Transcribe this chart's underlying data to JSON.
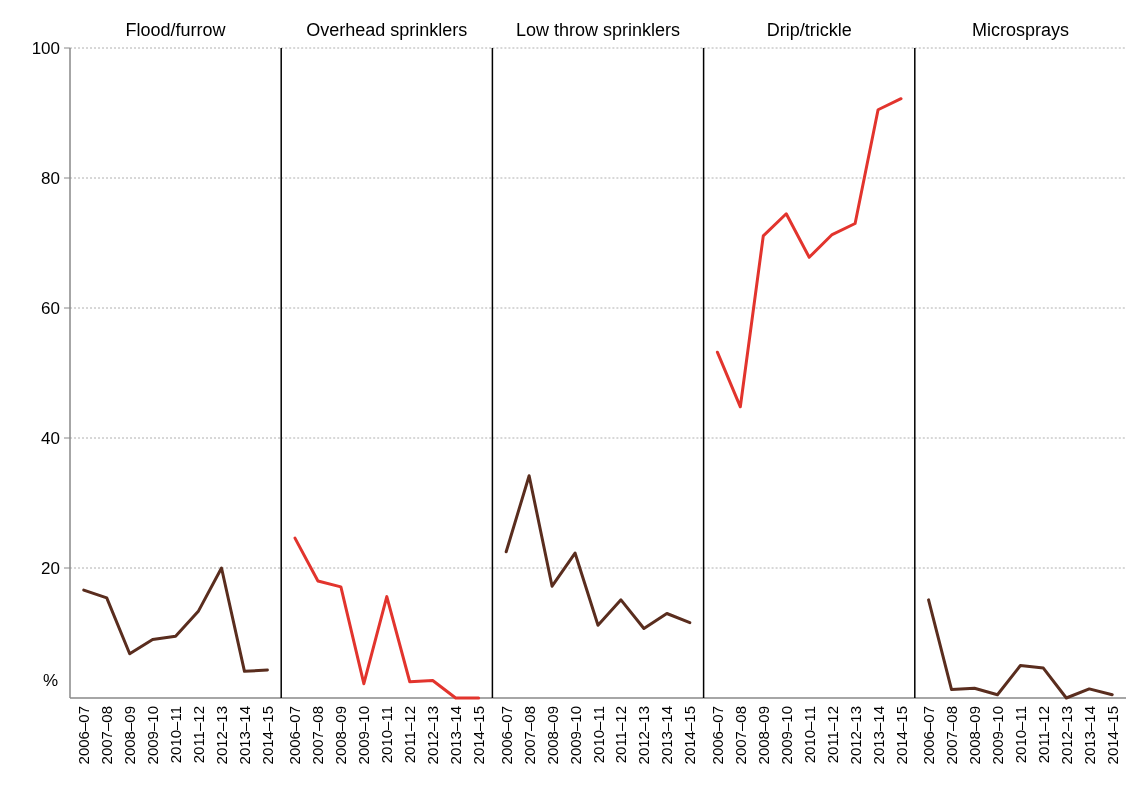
{
  "chart_data": [
    {
      "type": "line",
      "title": "Flood/furrow",
      "ylabel": "%",
      "categories": [
        "2006–07",
        "2007–08",
        "2008–09",
        "2009–10",
        "2010–11",
        "2011–12",
        "2012–13",
        "2013–14",
        "2014–15"
      ],
      "ylim": [
        0,
        100
      ],
      "yticks": [
        20,
        40,
        60,
        80,
        100
      ],
      "grid": "y",
      "series": [
        {
          "color": "#5a2d1e",
          "values": [
            16.6,
            15.4,
            6.8,
            9.0,
            9.5,
            13.4,
            20.0,
            4.1,
            4.3
          ]
        }
      ]
    },
    {
      "type": "line",
      "title": "Overhead sprinklers",
      "categories": [
        "2006–07",
        "2007–08",
        "2008–09",
        "2009–10",
        "2010–11",
        "2011–12",
        "2012–13",
        "2013–14",
        "2014–15"
      ],
      "ylim": [
        0,
        100
      ],
      "yticks": [
        20,
        40,
        60,
        80,
        100
      ],
      "grid": "y",
      "tick_labels": "x",
      "series": [
        {
          "color": "#e2342d",
          "values": [
            24.6,
            18.0,
            17.1,
            2.2,
            15.6,
            2.5,
            2.7,
            0,
            0
          ]
        }
      ]
    },
    {
      "type": "line",
      "title": "Low throw sprinklers",
      "categories": [
        "2006–07",
        "2007–08",
        "2008–09",
        "2009–10",
        "2010–11",
        "2011–12",
        "2012–13",
        "2013–14",
        "2014–15"
      ],
      "ylim": [
        0,
        100
      ],
      "yticks": [
        20,
        40,
        60,
        80,
        100
      ],
      "grid": "y",
      "tick_labels": "x",
      "series": [
        {
          "color": "#5a2d1e",
          "values": [
            22.5,
            34.2,
            17.2,
            22.3,
            11.2,
            15.1,
            10.7,
            13.0,
            11.6
          ]
        }
      ]
    },
    {
      "type": "line",
      "title": "Drip/trickle",
      "categories": [
        "2006–07",
        "2007–08",
        "2008–09",
        "2009–10",
        "2010–11",
        "2011–12",
        "2012–13",
        "2013–14",
        "2014–15"
      ],
      "ylim": [
        0,
        100
      ],
      "yticks": [
        20,
        40,
        60,
        80,
        100
      ],
      "grid": "y",
      "tick_labels": "x",
      "series": [
        {
          "color": "#e2342d",
          "values": [
            53.2,
            44.8,
            71.1,
            74.5,
            67.8,
            71.3,
            73.0,
            90.5,
            92.2
          ]
        }
      ]
    },
    {
      "type": "line",
      "title": "Microsprays",
      "categories": [
        "2006–07",
        "2007–08",
        "2008–09",
        "2009–10",
        "2010–11",
        "2011–12",
        "2012–13",
        "2013–14",
        "2014–15"
      ],
      "ylim": [
        0,
        100
      ],
      "yticks": [
        20,
        40,
        60,
        80,
        100
      ],
      "grid": "y",
      "tick_labels": "x",
      "series": [
        {
          "color": "#5a2d1e",
          "values": [
            15.1,
            1.3,
            1.5,
            0.5,
            5.0,
            4.6,
            0,
            1.4,
            0.5
          ]
        }
      ]
    }
  ]
}
